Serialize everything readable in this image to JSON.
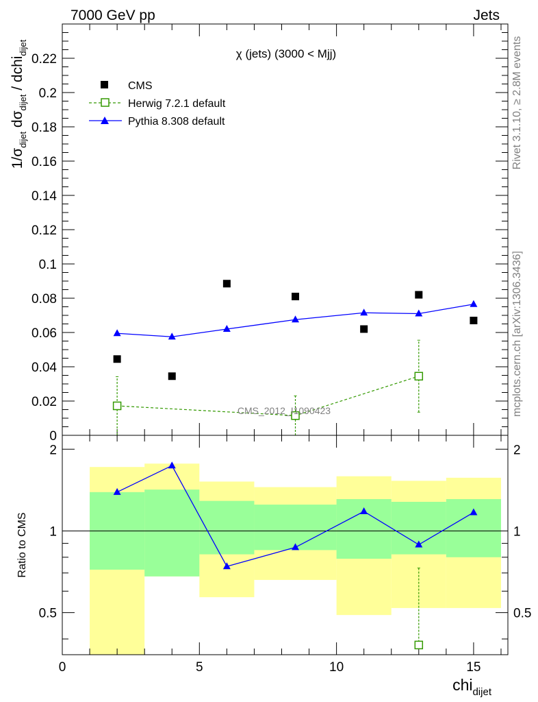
{
  "header": {
    "left": "7000 GeV pp",
    "right": "Jets"
  },
  "side_labels": {
    "rivet": "Rivet 3.1.10, ≥ 2.8M events",
    "mcplots": "mcplots.cern.ch [arXiv:1306.3436]"
  },
  "chart_data": [
    {
      "type": "scatter",
      "title": "χ (jets) (3000 < Mjj)",
      "analysis_watermark": "CMS_2012_I1090423",
      "ylabel": {
        "prefix": "1/σ",
        "sub1": "dijet",
        "mid": " dσ",
        "sub2": "dijet",
        "suffix": " / dchi",
        "sub3": "dijet"
      },
      "xlim": [
        0,
        16.25
      ],
      "ylim": [
        0,
        0.24
      ],
      "y_ticks": [
        {
          "v": 0,
          "label": "0"
        },
        {
          "v": 0.02,
          "label": "0.02"
        },
        {
          "v": 0.04,
          "label": "0.04"
        },
        {
          "v": 0.06,
          "label": "0.06"
        },
        {
          "v": 0.08,
          "label": "0.08"
        },
        {
          "v": 0.1,
          "label": "0.1"
        },
        {
          "v": 0.12,
          "label": "0.12"
        },
        {
          "v": 0.14,
          "label": "0.14"
        },
        {
          "v": 0.16,
          "label": "0.16"
        },
        {
          "v": 0.18,
          "label": "0.18"
        },
        {
          "v": 0.2,
          "label": "0.2"
        },
        {
          "v": 0.22,
          "label": "0.22"
        }
      ],
      "legend_position": "top-left",
      "series": [
        {
          "name": "CMS",
          "style": "square-marker",
          "color": "#000000",
          "x": [
            2,
            4,
            6,
            8.5,
            11,
            13,
            15
          ],
          "y": [
            0.0445,
            0.0345,
            0.0885,
            0.081,
            0.062,
            0.082,
            0.067
          ]
        },
        {
          "name": "Herwig 7.2.1 default",
          "style": "open-square-dashed",
          "color": "#339900",
          "x": [
            2,
            8.5,
            13
          ],
          "y": [
            0.0172,
            0.0115,
            0.0345
          ],
          "err_low": [
            0.0172,
            0.0115,
            0.021
          ],
          "err_high": [
            0.017,
            0.0115,
            0.021
          ]
        },
        {
          "name": "Pythia 8.308 default",
          "style": "triangle-line",
          "color": "#0000ff",
          "x": [
            2,
            4,
            6,
            8.5,
            11,
            13,
            15
          ],
          "y": [
            0.0595,
            0.0575,
            0.062,
            0.0675,
            0.0715,
            0.071,
            0.0765
          ]
        }
      ]
    },
    {
      "type": "line",
      "ylabel": "Ratio to CMS",
      "xlabel": {
        "main": "chi",
        "sub": "dijet"
      },
      "xlim": [
        0,
        16.25
      ],
      "ylim": [
        0.35,
        2.25
      ],
      "log_y": true,
      "x_ticks": [
        {
          "v": 0,
          "label": "0"
        },
        {
          "v": 5,
          "label": "5"
        },
        {
          "v": 10,
          "label": "10"
        },
        {
          "v": 15,
          "label": "15"
        }
      ],
      "y_ticks": [
        {
          "v": 0.5,
          "label": "0.5"
        },
        {
          "v": 1,
          "label": "1"
        },
        {
          "v": 2,
          "label": "2"
        }
      ],
      "bands": [
        {
          "x0": 1,
          "x1": 3,
          "yellow": [
            0.25,
            1.72
          ],
          "green": [
            0.72,
            1.39
          ]
        },
        {
          "x0": 3,
          "x1": 5,
          "yellow": [
            0.68,
            1.77
          ],
          "green": [
            0.68,
            1.42
          ]
        },
        {
          "x0": 5,
          "x1": 7,
          "yellow": [
            0.57,
            1.52
          ],
          "green": [
            0.82,
            1.29
          ]
        },
        {
          "x0": 7,
          "x1": 10,
          "yellow": [
            0.66,
            1.45
          ],
          "green": [
            0.85,
            1.25
          ]
        },
        {
          "x0": 10,
          "x1": 12,
          "yellow": [
            0.49,
            1.59
          ],
          "green": [
            0.79,
            1.31
          ]
        },
        {
          "x0": 12,
          "x1": 14,
          "yellow": [
            0.52,
            1.53
          ],
          "green": [
            0.82,
            1.28
          ]
        },
        {
          "x0": 14,
          "x1": 16,
          "yellow": [
            0.52,
            1.57
          ],
          "green": [
            0.8,
            1.31
          ]
        }
      ],
      "series": [
        {
          "name": "Pythia 8.308 default",
          "color": "#0000ff",
          "x": [
            2,
            4,
            6,
            8.5,
            11,
            13,
            15
          ],
          "y": [
            1.39,
            1.74,
            0.74,
            0.87,
            1.18,
            0.89,
            1.17
          ]
        },
        {
          "name": "Herwig 7.2.1 default",
          "color": "#339900",
          "x": [
            13
          ],
          "y": [
            0.38
          ],
          "err_low": [
            0.02
          ],
          "err_high": [
            0.35
          ]
        }
      ]
    }
  ]
}
